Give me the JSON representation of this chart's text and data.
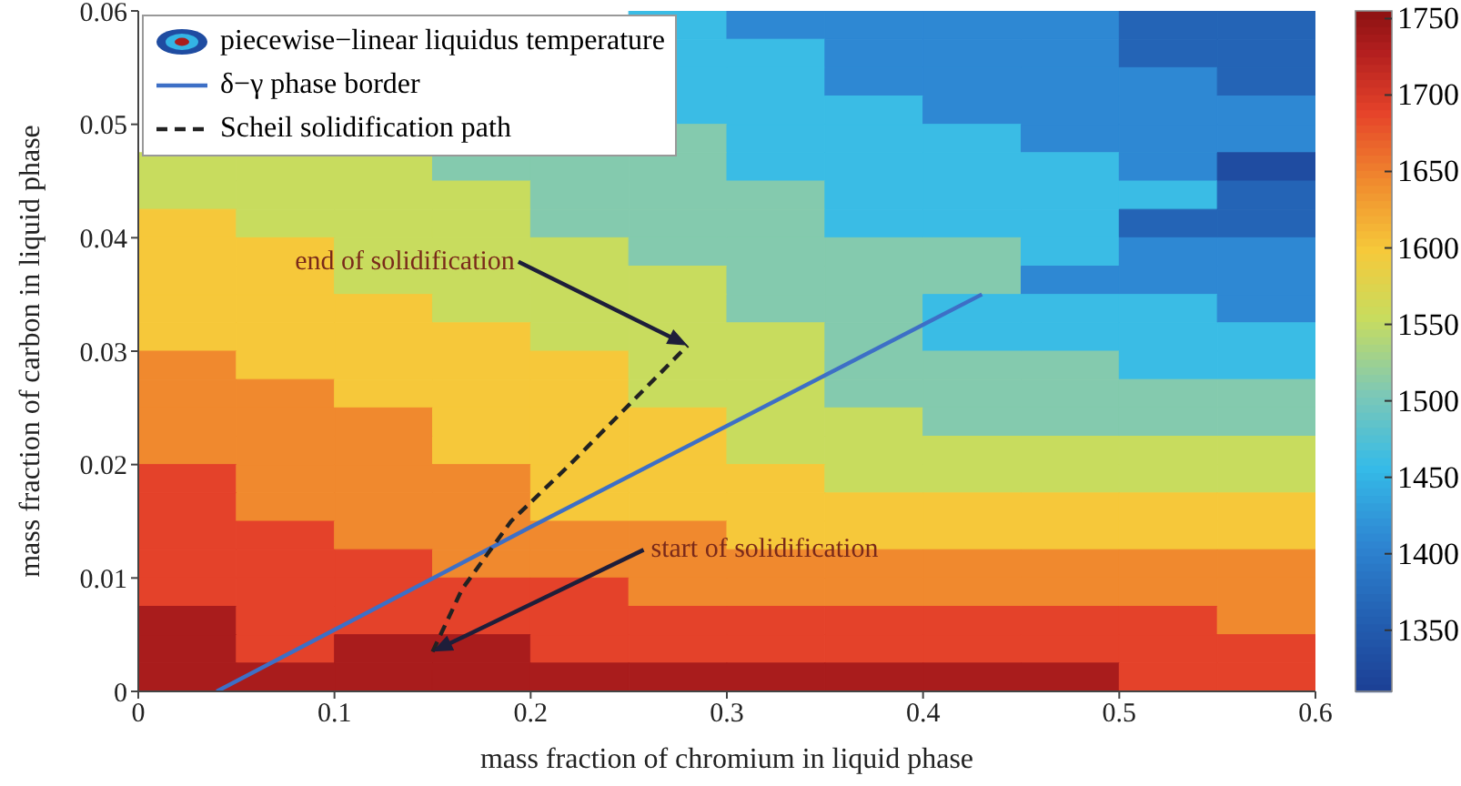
{
  "chart_data": {
    "type": "heatmap",
    "xlabel": "mass fraction of chromium in liquid phase",
    "ylabel": "mass fraction of carbon in liquid phase",
    "xlim": [
      0,
      0.6
    ],
    "xticks": [
      0,
      0.1,
      0.2,
      0.3,
      0.4,
      0.5,
      0.6
    ],
    "ylim": [
      0,
      0.06
    ],
    "yticks": [
      0,
      0.01,
      0.02,
      0.03,
      0.04,
      0.05,
      0.06
    ],
    "clim": [
      1310,
      1755
    ],
    "cticks": [
      1350,
      1400,
      1450,
      1500,
      1550,
      1600,
      1650,
      1700,
      1750
    ],
    "x": [
      0.025,
      0.075,
      0.125,
      0.175,
      0.225,
      0.275,
      0.325,
      0.375,
      0.425,
      0.475,
      0.525,
      0.575
    ],
    "y": [
      0.05875,
      0.05625,
      0.05375,
      0.05125,
      0.04875,
      0.04625,
      0.04375,
      0.04125,
      0.03875,
      0.03625,
      0.03375,
      0.03125,
      0.02875,
      0.02625,
      0.02375,
      0.02125,
      0.01875,
      0.01625,
      0.01375,
      0.01125,
      0.00875,
      0.00625,
      0.00375,
      0.00125
    ],
    "clabel": "piecewise−linear liquidus temperature",
    "cells": [
      [
        null,
        null,
        null,
        null,
        null,
        1460,
        1410,
        1410,
        1410,
        1410,
        1365,
        1365
      ],
      [
        null,
        null,
        null,
        null,
        null,
        1460,
        1460,
        1410,
        1410,
        1410,
        1365,
        1365
      ],
      [
        null,
        null,
        null,
        null,
        null,
        1460,
        1460,
        1410,
        1410,
        1410,
        1410,
        1365
      ],
      [
        null,
        null,
        null,
        null,
        null,
        1460,
        1460,
        1460,
        1410,
        1410,
        1410,
        1410
      ],
      [
        null,
        null,
        null,
        null,
        null,
        1510,
        1460,
        1460,
        1460,
        1410,
        1410,
        1410
      ],
      [
        1555,
        1555,
        1555,
        1510,
        1510,
        1510,
        1460,
        1460,
        1460,
        1460,
        1410,
        1330
      ],
      [
        1555,
        1555,
        1555,
        1555,
        1510,
        1510,
        1510,
        1460,
        1460,
        1460,
        1460,
        1365
      ],
      [
        1600,
        1555,
        1555,
        1555,
        1510,
        1510,
        1510,
        1460,
        1460,
        1460,
        1365,
        1365
      ],
      [
        1600,
        1600,
        1555,
        1555,
        1555,
        1510,
        1510,
        1510,
        1510,
        1460,
        1410,
        1410
      ],
      [
        1600,
        1600,
        1555,
        1555,
        1555,
        1555,
        1510,
        1510,
        1510,
        1410,
        1410,
        1410
      ],
      [
        1600,
        1600,
        1600,
        1555,
        1555,
        1555,
        1510,
        1510,
        1460,
        1460,
        1460,
        1410
      ],
      [
        1600,
        1600,
        1600,
        1600,
        1555,
        1555,
        1555,
        1510,
        1460,
        1460,
        1460,
        1460
      ],
      [
        1645,
        1600,
        1600,
        1600,
        1600,
        1555,
        1555,
        1510,
        1510,
        1510,
        1460,
        1460
      ],
      [
        1645,
        1645,
        1600,
        1600,
        1600,
        1555,
        1555,
        1510,
        1510,
        1510,
        1510,
        1510
      ],
      [
        1645,
        1645,
        1645,
        1600,
        1600,
        1600,
        1555,
        1555,
        1510,
        1510,
        1510,
        1510
      ],
      [
        1645,
        1645,
        1645,
        1600,
        1600,
        1600,
        1555,
        1555,
        1555,
        1555,
        1555,
        1555
      ],
      [
        1690,
        1645,
        1645,
        1645,
        1600,
        1600,
        1600,
        1555,
        1555,
        1555,
        1555,
        1555
      ],
      [
        1690,
        1645,
        1645,
        1645,
        1600,
        1600,
        1600,
        1600,
        1600,
        1600,
        1600,
        1600
      ],
      [
        1690,
        1690,
        1645,
        1645,
        1645,
        1645,
        1600,
        1600,
        1600,
        1600,
        1600,
        1600
      ],
      [
        1690,
        1690,
        1690,
        1645,
        1645,
        1645,
        1645,
        1645,
        1645,
        1645,
        1645,
        1645
      ],
      [
        1690,
        1690,
        1690,
        1690,
        1690,
        1645,
        1645,
        1645,
        1645,
        1645,
        1645,
        1645
      ],
      [
        1735,
        1690,
        1690,
        1690,
        1690,
        1690,
        1690,
        1690,
        1690,
        1690,
        1690,
        1645
      ],
      [
        1735,
        1690,
        1735,
        1735,
        1690,
        1690,
        1690,
        1690,
        1690,
        1690,
        1690,
        1690
      ],
      [
        1735,
        1735,
        1735,
        1735,
        1735,
        1735,
        1735,
        1735,
        1735,
        1735,
        1690,
        1690
      ]
    ],
    "series": [
      {
        "type": "line",
        "name": "δ−γ phase border",
        "color": "#3d6fc6",
        "x": [
          0.04,
          0.2,
          0.43
        ],
        "values": [
          0,
          0.0145,
          0.035
        ]
      },
      {
        "type": "line",
        "name": "Scheil solidification path",
        "color": "#222222",
        "line_style": "dashed",
        "x": [
          0.15,
          0.165,
          0.19,
          0.22,
          0.28
        ],
        "values": [
          0.0035,
          0.009,
          0.015,
          0.02,
          0.0305
        ]
      }
    ],
    "legend": "top left",
    "annotations": [
      "end of solidification",
      "start of solidification"
    ]
  }
}
